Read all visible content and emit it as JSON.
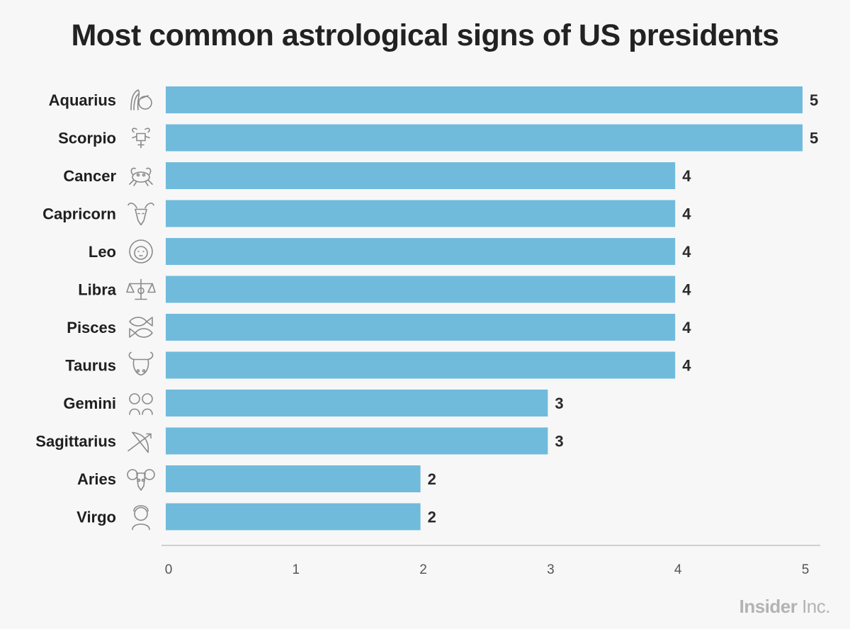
{
  "chart_data": {
    "type": "bar",
    "orientation": "horizontal",
    "title": "Most common astrological signs of US presidents",
    "categories": [
      "Aquarius",
      "Scorpio",
      "Cancer",
      "Capricorn",
      "Leo",
      "Libra",
      "Pisces",
      "Taurus",
      "Gemini",
      "Sagittarius",
      "Aries",
      "Virgo"
    ],
    "values": [
      5,
      5,
      4,
      4,
      4,
      4,
      4,
      4,
      3,
      3,
      2,
      2
    ],
    "icons": [
      "aquarius-icon",
      "scorpio-icon",
      "cancer-icon",
      "capricorn-icon",
      "leo-icon",
      "libra-icon",
      "pisces-icon",
      "taurus-icon",
      "gemini-icon",
      "sagittarius-icon",
      "aries-icon",
      "virgo-icon"
    ],
    "xlim": [
      0,
      5
    ],
    "xticks": [
      "0",
      "1",
      "2",
      "3",
      "4",
      "5"
    ],
    "grid": false,
    "bar_color": "#70bbdc"
  },
  "branding": {
    "logo_bold": "Insider",
    "logo_regular": "Inc."
  }
}
